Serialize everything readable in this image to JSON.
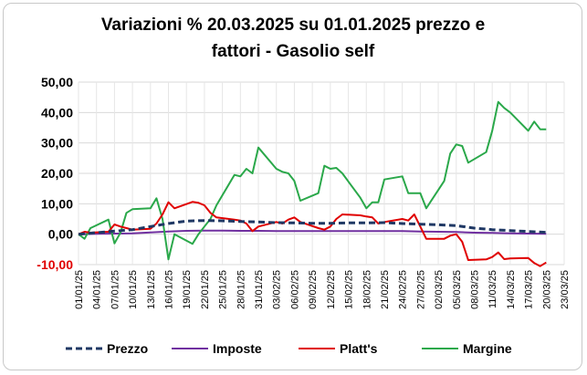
{
  "chart_data": {
    "type": "line",
    "title_lines": [
      "Variazioni % 20.03.2025 su 01.01.2025 prezzo e",
      "fattori - Gasolio self"
    ],
    "xlabel": "",
    "ylabel": "",
    "ylim": [
      -10,
      50
    ],
    "yticks": [
      50,
      40,
      30,
      20,
      10,
      0,
      -10
    ],
    "ytick_labels": [
      "50,00",
      "40,00",
      "30,00",
      "20,00",
      "10,00",
      "0,00",
      "-10,00"
    ],
    "xlim": [
      "01/01/25",
      "23/03/25"
    ],
    "xtick_labels": [
      "01/01/25",
      "04/01/25",
      "07/01/25",
      "10/01/25",
      "13/01/25",
      "16/01/25",
      "19/01/25",
      "22/01/25",
      "25/01/25",
      "28/01/25",
      "31/01/25",
      "03/02/25",
      "06/02/25",
      "09/02/25",
      "12/02/25",
      "15/02/25",
      "18/02/25",
      "21/02/25",
      "24/02/25",
      "27/02/25",
      "02/03/25",
      "05/03/25",
      "08/03/25",
      "11/03/25",
      "14/03/25",
      "17/03/25",
      "20/03/25",
      "23/03/25"
    ],
    "grid": true,
    "legend": "bottom",
    "colors": {
      "prezzo": "#1f3864",
      "imposte": "#7030a0",
      "platts": "#e00000",
      "margine": "#2aa84a",
      "negative_tick": "#e00000"
    },
    "series": [
      {
        "name": "Prezzo",
        "style": "dashed",
        "x": [
          "01/01/25",
          "04/01/25",
          "07/01/25",
          "10/01/25",
          "13/01/25",
          "16/01/25",
          "19/01/25",
          "22/01/25",
          "25/01/25",
          "28/01/25",
          "31/01/25",
          "03/02/25",
          "06/02/25",
          "09/02/25",
          "12/02/25",
          "15/02/25",
          "18/02/25",
          "21/02/25",
          "24/02/25",
          "27/02/25",
          "02/03/25",
          "05/03/25",
          "08/03/25",
          "11/03/25",
          "14/03/25",
          "17/03/25",
          "20/03/25"
        ],
        "values": [
          0,
          0.5,
          1.0,
          1.5,
          2.5,
          3.5,
          4.3,
          4.5,
          4.4,
          4.2,
          4.0,
          3.8,
          3.7,
          3.6,
          3.6,
          3.7,
          3.7,
          3.8,
          3.5,
          3.3,
          3.1,
          2.8,
          2.0,
          1.5,
          1.2,
          0.9,
          0.6
        ]
      },
      {
        "name": "Imposte",
        "style": "solid",
        "x": [
          "01/01/25",
          "04/01/25",
          "07/01/25",
          "10/01/25",
          "13/01/25",
          "16/01/25",
          "19/01/25",
          "22/01/25",
          "25/01/25",
          "28/01/25",
          "31/01/25",
          "03/02/25",
          "06/02/25",
          "09/02/25",
          "12/02/25",
          "15/02/25",
          "18/02/25",
          "21/02/25",
          "24/02/25",
          "27/02/25",
          "02/03/25",
          "05/03/25",
          "08/03/25",
          "11/03/25",
          "14/03/25",
          "17/03/25",
          "20/03/25"
        ],
        "values": [
          0,
          0.1,
          0.2,
          0.3,
          0.6,
          0.9,
          1.1,
          1.2,
          1.2,
          1.1,
          1.1,
          1.0,
          1.0,
          1.0,
          1.0,
          1.0,
          1.0,
          1.0,
          1.0,
          0.9,
          0.8,
          0.7,
          0.5,
          0.4,
          0.3,
          0.2,
          0.1
        ]
      },
      {
        "name": "Platt's",
        "style": "solid",
        "x": [
          "01/01/25",
          "02/01/25",
          "03/01/25",
          "06/01/25",
          "07/01/25",
          "08/01/25",
          "09/01/25",
          "10/01/25",
          "13/01/25",
          "14/01/25",
          "15/01/25",
          "16/01/25",
          "17/01/25",
          "20/01/25",
          "21/01/25",
          "22/01/25",
          "23/01/25",
          "24/01/25",
          "27/01/25",
          "28/01/25",
          "29/01/25",
          "30/01/25",
          "31/01/25",
          "03/02/25",
          "04/02/25",
          "05/02/25",
          "06/02/25",
          "07/02/25",
          "10/02/25",
          "11/02/25",
          "12/02/25",
          "13/02/25",
          "14/02/25",
          "17/02/25",
          "18/02/25",
          "19/02/25",
          "20/02/25",
          "21/02/25",
          "24/02/25",
          "25/02/25",
          "26/02/25",
          "27/02/25",
          "28/02/25",
          "03/03/25",
          "04/03/25",
          "05/03/25",
          "06/03/25",
          "07/03/25",
          "10/03/25",
          "11/03/25",
          "12/03/25",
          "13/03/25",
          "14/03/25",
          "17/03/25",
          "18/03/25",
          "19/03/25",
          "20/03/25"
        ],
        "values": [
          0,
          0.8,
          0.5,
          0.8,
          3.2,
          2.5,
          2.0,
          1.5,
          1.8,
          3.5,
          6.5,
          10.5,
          8.5,
          10.6,
          10.3,
          9.5,
          7.0,
          5.5,
          4.8,
          4.5,
          3.5,
          1.0,
          2.5,
          4.0,
          3.5,
          4.8,
          5.5,
          4.0,
          2.0,
          1.5,
          2.5,
          5.0,
          6.5,
          6.2,
          5.8,
          5.5,
          3.5,
          4.0,
          5.0,
          4.5,
          6.5,
          2.5,
          -1.5,
          -1.5,
          -0.5,
          0.0,
          -2.5,
          -8.5,
          -8.3,
          -7.5,
          -6.0,
          -8.2,
          -8.0,
          -7.8,
          -9.5,
          -10.5,
          -9.3
        ]
      },
      {
        "name": "Margine",
        "style": "solid",
        "x": [
          "01/01/25",
          "02/01/25",
          "03/01/25",
          "06/01/25",
          "07/01/25",
          "08/01/25",
          "09/01/25",
          "10/01/25",
          "13/01/25",
          "14/01/25",
          "15/01/25",
          "16/01/25",
          "17/01/25",
          "20/01/25",
          "21/01/25",
          "22/01/25",
          "23/01/25",
          "24/01/25",
          "27/01/25",
          "28/01/25",
          "29/01/25",
          "30/01/25",
          "31/01/25",
          "03/02/25",
          "04/02/25",
          "05/02/25",
          "06/02/25",
          "07/02/25",
          "10/02/25",
          "11/02/25",
          "12/02/25",
          "13/02/25",
          "14/02/25",
          "17/02/25",
          "18/02/25",
          "19/02/25",
          "20/02/25",
          "21/02/25",
          "24/02/25",
          "25/02/25",
          "26/02/25",
          "27/02/25",
          "28/02/25",
          "03/03/25",
          "04/03/25",
          "05/03/25",
          "06/03/25",
          "07/03/25",
          "10/03/25",
          "11/03/25",
          "12/03/25",
          "13/03/25",
          "14/03/25",
          "17/03/25",
          "18/03/25",
          "19/03/25",
          "20/03/25"
        ],
        "values": [
          0,
          -1.5,
          2.0,
          4.8,
          -3.0,
          0.5,
          7.0,
          8.2,
          8.5,
          11.8,
          5.0,
          -8.3,
          0.0,
          -3.2,
          0.0,
          2.5,
          5.0,
          9.5,
          19.5,
          19.0,
          21.5,
          20.0,
          28.5,
          21.5,
          20.5,
          20.0,
          17.5,
          11.0,
          13.5,
          22.5,
          21.5,
          21.8,
          20.0,
          12.0,
          8.5,
          10.5,
          10.5,
          18.0,
          19.0,
          13.5,
          13.5,
          13.5,
          8.5,
          17.5,
          26.5,
          29.5,
          29.0,
          23.5,
          27.0,
          34.0,
          43.5,
          41.5,
          40.0,
          34.0,
          37.0,
          34.5,
          34.5
        ]
      }
    ]
  },
  "legend": {
    "items": [
      {
        "label": "Prezzo"
      },
      {
        "label": "Imposte"
      },
      {
        "label": "Platt's"
      },
      {
        "label": "Margine"
      }
    ]
  }
}
